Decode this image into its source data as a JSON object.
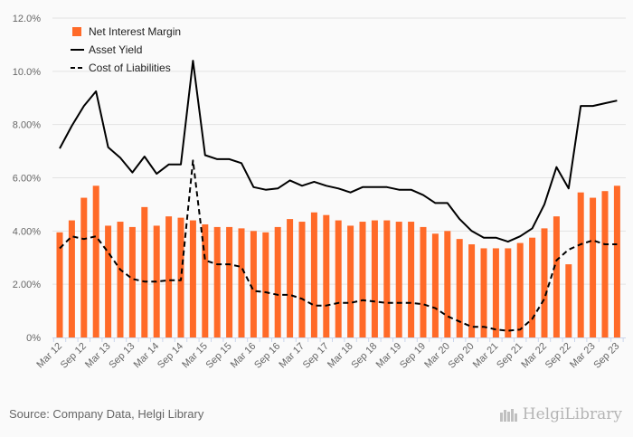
{
  "chart_data": {
    "type": "bar+line",
    "title": "",
    "xlabel": "",
    "ylabel": "",
    "ylim": [
      0,
      12
    ],
    "yticks": [
      "0%",
      "2.00%",
      "4.00%",
      "6.00%",
      "8.00%",
      "10.0%",
      "12.0%"
    ],
    "ytick_values": [
      0,
      2,
      4,
      6,
      8,
      10,
      12
    ],
    "grid": true,
    "legend_position": "top-left",
    "categories": [
      "Mar 12",
      "Jun 12",
      "Sep 12",
      "Dec 12",
      "Mar 13",
      "Jun 13",
      "Sep 13",
      "Dec 13",
      "Mar 14",
      "Jun 14",
      "Sep 14",
      "Dec 14",
      "Mar 15",
      "Jun 15",
      "Sep 15",
      "Dec 15",
      "Mar 16",
      "Jun 16",
      "Sep 16",
      "Dec 16",
      "Mar 17",
      "Jun 17",
      "Sep 17",
      "Dec 17",
      "Mar 18",
      "Jun 18",
      "Sep 18",
      "Dec 18",
      "Mar 19",
      "Jun 19",
      "Sep 19",
      "Dec 19",
      "Mar 20",
      "Jun 20",
      "Sep 20",
      "Dec 20",
      "Mar 21",
      "Jun 21",
      "Sep 21",
      "Dec 21",
      "Mar 22",
      "Jun 22",
      "Sep 22",
      "Dec 22",
      "Mar 23",
      "Jun 23",
      "Sep 23"
    ],
    "xtick_labels": [
      "Mar 12",
      "Sep 12",
      "Mar 13",
      "Sep 13",
      "Mar 14",
      "Sep 14",
      "Mar 15",
      "Sep 15",
      "Mar 16",
      "Sep 16",
      "Mar 17",
      "Sep 17",
      "Mar 18",
      "Sep 18",
      "Mar 19",
      "Sep 19",
      "Mar 20",
      "Sep 20",
      "Mar 21",
      "Sep 21",
      "Mar 22",
      "Sep 22",
      "Mar 23",
      "Sep 23"
    ],
    "series": [
      {
        "name": "Net Interest Margin",
        "kind": "bar",
        "color": "#ff6a28",
        "values": [
          3.95,
          4.4,
          5.25,
          5.7,
          4.2,
          4.35,
          4.15,
          4.9,
          4.2,
          4.55,
          4.5,
          4.4,
          4.25,
          4.15,
          4.15,
          4.1,
          4.0,
          3.95,
          4.15,
          4.45,
          4.35,
          4.7,
          4.6,
          4.4,
          4.2,
          4.35,
          4.4,
          4.4,
          4.35,
          4.35,
          4.15,
          3.9,
          4.0,
          3.7,
          3.5,
          3.35,
          3.35,
          3.35,
          3.55,
          3.75,
          4.1,
          4.55,
          2.75,
          5.45,
          5.25,
          5.5,
          5.7
        ]
      },
      {
        "name": "Asset Yield",
        "kind": "line",
        "color": "#000000",
        "values": [
          7.1,
          7.95,
          8.7,
          9.25,
          7.15,
          6.75,
          6.2,
          6.8,
          6.15,
          6.5,
          6.5,
          10.4,
          6.85,
          6.7,
          6.7,
          6.55,
          5.65,
          5.55,
          5.6,
          5.9,
          5.7,
          5.85,
          5.7,
          5.6,
          5.45,
          5.65,
          5.65,
          5.65,
          5.55,
          5.55,
          5.35,
          5.05,
          5.05,
          4.45,
          4.0,
          3.75,
          3.75,
          3.6,
          3.8,
          4.1,
          5.0,
          6.4,
          5.6,
          8.7,
          8.7,
          8.8,
          8.9
        ]
      },
      {
        "name": "Cost of Liabilities",
        "kind": "dashed-line",
        "color": "#000000",
        "values": [
          3.35,
          3.8,
          3.7,
          3.8,
          3.2,
          2.55,
          2.2,
          2.1,
          2.1,
          2.15,
          2.15,
          6.65,
          2.9,
          2.75,
          2.75,
          2.65,
          1.75,
          1.7,
          1.6,
          1.6,
          1.45,
          1.2,
          1.2,
          1.3,
          1.3,
          1.4,
          1.35,
          1.3,
          1.3,
          1.3,
          1.25,
          1.1,
          0.8,
          0.6,
          0.4,
          0.4,
          0.3,
          0.25,
          0.3,
          0.7,
          1.45,
          2.9,
          3.3,
          3.5,
          3.65,
          3.5,
          3.5
        ]
      }
    ]
  },
  "footer": {
    "source": "Source: Company Data, Helgi Library",
    "logo_text": "HelgiLibrary"
  }
}
